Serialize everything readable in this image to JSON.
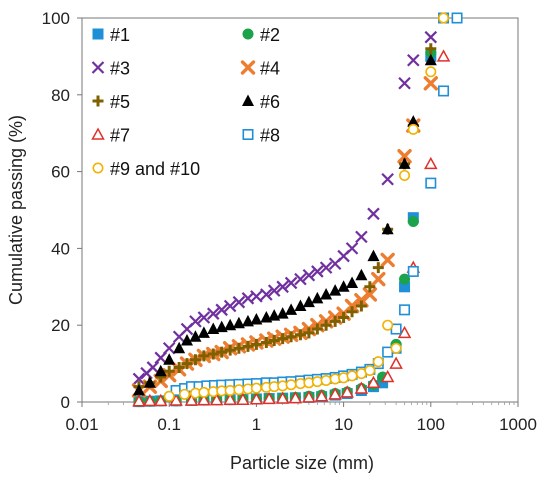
{
  "chart_data": {
    "type": "scatter",
    "xscale": "log",
    "xlabel": "Particle size (mm)",
    "ylabel": "Cumulative passing (%)",
    "xlim": [
      0.01,
      1000
    ],
    "ylim": [
      0,
      100
    ],
    "xticks": [
      "0.01",
      "0.1",
      "1",
      "10",
      "100",
      "1000"
    ],
    "yticks": [
      "0",
      "20",
      "40",
      "60",
      "80",
      "100"
    ],
    "grid": false,
    "legend_position": "top-left (inside, 2 columns)",
    "series": [
      {
        "name": "#1",
        "marker": "square",
        "color": "#1f8fd6",
        "points": [
          [
            0.045,
            0.1
          ],
          [
            0.06,
            0.2
          ],
          [
            0.08,
            0.3
          ],
          [
            0.12,
            0.3
          ],
          [
            0.18,
            0.4
          ],
          [
            0.25,
            0.5
          ],
          [
            0.35,
            0.6
          ],
          [
            0.5,
            0.6
          ],
          [
            0.7,
            0.7
          ],
          [
            1,
            0.8
          ],
          [
            1.4,
            0.9
          ],
          [
            2,
            1.0
          ],
          [
            2.8,
            1.1
          ],
          [
            4,
            1.2
          ],
          [
            5.6,
            1.4
          ],
          [
            8,
            1.8
          ],
          [
            11,
            2.2
          ],
          [
            16,
            3.0
          ],
          [
            22,
            4.0
          ],
          [
            28,
            5.0
          ],
          [
            40,
            14.0
          ],
          [
            50,
            30.0
          ],
          [
            63,
            48.0
          ],
          [
            100,
            90.0
          ],
          [
            140,
            100.0
          ]
        ]
      },
      {
        "name": "#2",
        "marker": "circle",
        "color": "#1aa34a",
        "points": [
          [
            0.045,
            0.1
          ],
          [
            0.06,
            0.2
          ],
          [
            0.08,
            0.3
          ],
          [
            0.12,
            0.3
          ],
          [
            0.18,
            0.4
          ],
          [
            0.25,
            0.5
          ],
          [
            0.35,
            0.6
          ],
          [
            0.5,
            0.6
          ],
          [
            0.7,
            0.7
          ],
          [
            1,
            0.8
          ],
          [
            1.4,
            0.9
          ],
          [
            2,
            1.0
          ],
          [
            2.8,
            1.2
          ],
          [
            4,
            1.5
          ],
          [
            5.6,
            1.8
          ],
          [
            8,
            2.2
          ],
          [
            11,
            2.6
          ],
          [
            16,
            3.5
          ],
          [
            22,
            4.5
          ],
          [
            28,
            6.5
          ],
          [
            40,
            15.0
          ],
          [
            50,
            32.0
          ],
          [
            63,
            47.0
          ],
          [
            100,
            91.0
          ],
          [
            140,
            100.0
          ]
        ]
      },
      {
        "name": "#3",
        "marker": "x",
        "color": "#7030a0",
        "points": [
          [
            0.045,
            6
          ],
          [
            0.055,
            7.5
          ],
          [
            0.065,
            9
          ],
          [
            0.08,
            11.5
          ],
          [
            0.1,
            14
          ],
          [
            0.13,
            17
          ],
          [
            0.16,
            19
          ],
          [
            0.2,
            21
          ],
          [
            0.25,
            22
          ],
          [
            0.32,
            23
          ],
          [
            0.4,
            24
          ],
          [
            0.5,
            25
          ],
          [
            0.63,
            26
          ],
          [
            0.8,
            27
          ],
          [
            1,
            27.5
          ],
          [
            1.3,
            28
          ],
          [
            1.6,
            29
          ],
          [
            2,
            30
          ],
          [
            2.5,
            31
          ],
          [
            3.2,
            32
          ],
          [
            4,
            33
          ],
          [
            5,
            34
          ],
          [
            6.3,
            35
          ],
          [
            8,
            36
          ],
          [
            10,
            38
          ],
          [
            12.5,
            40
          ],
          [
            16,
            43
          ],
          [
            22,
            49
          ],
          [
            32,
            58
          ],
          [
            50,
            83
          ],
          [
            63,
            89
          ],
          [
            100,
            95
          ]
        ]
      },
      {
        "name": "#4",
        "marker": "x-thick",
        "color": "#ed7d31",
        "points": [
          [
            0.045,
            3
          ],
          [
            0.06,
            4
          ],
          [
            0.08,
            5.5
          ],
          [
            0.1,
            7
          ],
          [
            0.13,
            8.5
          ],
          [
            0.16,
            10
          ],
          [
            0.2,
            11
          ],
          [
            0.25,
            12
          ],
          [
            0.32,
            12.5
          ],
          [
            0.4,
            13
          ],
          [
            0.5,
            14
          ],
          [
            0.63,
            14.5
          ],
          [
            0.8,
            15
          ],
          [
            1,
            15.5
          ],
          [
            1.3,
            16
          ],
          [
            1.6,
            16.5
          ],
          [
            2,
            17
          ],
          [
            2.5,
            17.5
          ],
          [
            3.2,
            18
          ],
          [
            4,
            19
          ],
          [
            5,
            20
          ],
          [
            6.3,
            21
          ],
          [
            8,
            22
          ],
          [
            10,
            23
          ],
          [
            12.5,
            25
          ],
          [
            16,
            26.5
          ],
          [
            20,
            28
          ],
          [
            25,
            32
          ],
          [
            32,
            37
          ],
          [
            50,
            64
          ],
          [
            63,
            72
          ],
          [
            100,
            83
          ]
        ]
      },
      {
        "name": "#5",
        "marker": "plus",
        "color": "#7f6000",
        "points": [
          [
            0.045,
            4
          ],
          [
            0.06,
            5
          ],
          [
            0.08,
            6.5
          ],
          [
            0.1,
            8
          ],
          [
            0.13,
            9
          ],
          [
            0.16,
            10
          ],
          [
            0.2,
            11
          ],
          [
            0.25,
            12
          ],
          [
            0.32,
            12.5
          ],
          [
            0.4,
            13
          ],
          [
            0.5,
            13.5
          ],
          [
            0.63,
            14
          ],
          [
            0.8,
            14.5
          ],
          [
            1,
            15
          ],
          [
            1.3,
            15.5
          ],
          [
            1.6,
            16
          ],
          [
            2,
            16.5
          ],
          [
            2.5,
            17
          ],
          [
            3.2,
            17.5
          ],
          [
            4,
            18
          ],
          [
            5,
            19
          ],
          [
            6.3,
            20
          ],
          [
            8,
            21
          ],
          [
            10,
            22
          ],
          [
            12.5,
            23.5
          ],
          [
            16,
            25
          ],
          [
            20,
            30
          ],
          [
            25,
            35
          ],
          [
            32,
            45
          ],
          [
            50,
            62
          ],
          [
            63,
            72
          ],
          [
            100,
            92
          ],
          [
            140,
            100
          ]
        ]
      },
      {
        "name": "#6",
        "marker": "triangle",
        "color": "#000000",
        "points": [
          [
            0.045,
            3
          ],
          [
            0.06,
            5
          ],
          [
            0.08,
            8
          ],
          [
            0.1,
            11
          ],
          [
            0.13,
            14
          ],
          [
            0.16,
            16
          ],
          [
            0.2,
            17
          ],
          [
            0.25,
            18
          ],
          [
            0.32,
            19
          ],
          [
            0.4,
            19.5
          ],
          [
            0.5,
            20
          ],
          [
            0.63,
            20.5
          ],
          [
            0.8,
            21
          ],
          [
            1,
            21.5
          ],
          [
            1.3,
            22
          ],
          [
            1.6,
            22.5
          ],
          [
            2,
            23
          ],
          [
            2.5,
            24
          ],
          [
            3.2,
            25
          ],
          [
            4,
            26
          ],
          [
            5,
            27
          ],
          [
            6.3,
            28
          ],
          [
            8,
            29
          ],
          [
            10,
            30
          ],
          [
            12.5,
            31
          ],
          [
            16,
            33
          ],
          [
            22,
            38
          ],
          [
            32,
            45
          ],
          [
            50,
            62
          ],
          [
            63,
            73
          ],
          [
            100,
            89
          ]
        ]
      },
      {
        "name": "#7",
        "marker": "triangle-open",
        "color": "#e0302a",
        "points": [
          [
            0.045,
            0.2
          ],
          [
            0.06,
            0.3
          ],
          [
            0.08,
            0.3
          ],
          [
            0.12,
            0.4
          ],
          [
            0.18,
            0.4
          ],
          [
            0.25,
            0.5
          ],
          [
            0.35,
            0.5
          ],
          [
            0.5,
            0.6
          ],
          [
            0.7,
            0.6
          ],
          [
            1,
            0.7
          ],
          [
            1.4,
            0.8
          ],
          [
            2,
            0.9
          ],
          [
            2.8,
            1.0
          ],
          [
            4,
            1.2
          ],
          [
            5.6,
            1.5
          ],
          [
            8,
            2.0
          ],
          [
            11,
            2.5
          ],
          [
            16,
            3.5
          ],
          [
            22,
            5.0
          ],
          [
            32,
            6.5
          ],
          [
            40,
            10.0
          ],
          [
            50,
            18.0
          ],
          [
            63,
            35.0
          ],
          [
            100,
            62.0
          ],
          [
            140,
            90.0
          ]
        ]
      },
      {
        "name": "#8",
        "marker": "square-open",
        "color": "#1f8fd6",
        "points": [
          [
            0.12,
            3
          ],
          [
            0.15,
            3.5
          ],
          [
            0.18,
            4
          ],
          [
            0.22,
            4
          ],
          [
            0.27,
            4.2
          ],
          [
            0.33,
            4.3
          ],
          [
            0.4,
            4.4
          ],
          [
            0.5,
            4.5
          ],
          [
            0.63,
            4.6
          ],
          [
            0.8,
            4.7
          ],
          [
            1,
            4.8
          ],
          [
            1.3,
            5
          ],
          [
            1.6,
            5
          ],
          [
            2,
            5.2
          ],
          [
            2.5,
            5.3
          ],
          [
            3.2,
            5.5
          ],
          [
            4,
            5.7
          ],
          [
            5,
            5.9
          ],
          [
            6.3,
            6.1
          ],
          [
            8,
            6.4
          ],
          [
            10,
            6.8
          ],
          [
            12.5,
            7.2
          ],
          [
            16,
            7.8
          ],
          [
            20,
            8.5
          ],
          [
            25,
            10
          ],
          [
            32,
            13
          ],
          [
            40,
            19
          ],
          [
            50,
            24
          ],
          [
            63,
            34
          ],
          [
            100,
            57
          ],
          [
            140,
            81
          ],
          [
            200,
            100
          ]
        ]
      },
      {
        "name": "#9 and #10",
        "marker": "circle-open",
        "color": "#f2b200",
        "points": [
          [
            0.1,
            1.5
          ],
          [
            0.15,
            2
          ],
          [
            0.2,
            2.3
          ],
          [
            0.25,
            2.5
          ],
          [
            0.32,
            2.7
          ],
          [
            0.4,
            2.9
          ],
          [
            0.5,
            3.0
          ],
          [
            0.63,
            3.2
          ],
          [
            0.8,
            3.4
          ],
          [
            1,
            3.6
          ],
          [
            1.3,
            3.8
          ],
          [
            1.6,
            4.0
          ],
          [
            2,
            4.2
          ],
          [
            2.5,
            4.5
          ],
          [
            3.2,
            4.8
          ],
          [
            4,
            5.0
          ],
          [
            5,
            5.3
          ],
          [
            6.3,
            5.6
          ],
          [
            8,
            6.0
          ],
          [
            10,
            6.3
          ],
          [
            12.5,
            6.8
          ],
          [
            16,
            7.4
          ],
          [
            20,
            8.2
          ],
          [
            25,
            10.5
          ],
          [
            32,
            20
          ],
          [
            40,
            14
          ],
          [
            50,
            59
          ],
          [
            63,
            71
          ],
          [
            100,
            86
          ],
          [
            140,
            100
          ]
        ]
      }
    ]
  }
}
